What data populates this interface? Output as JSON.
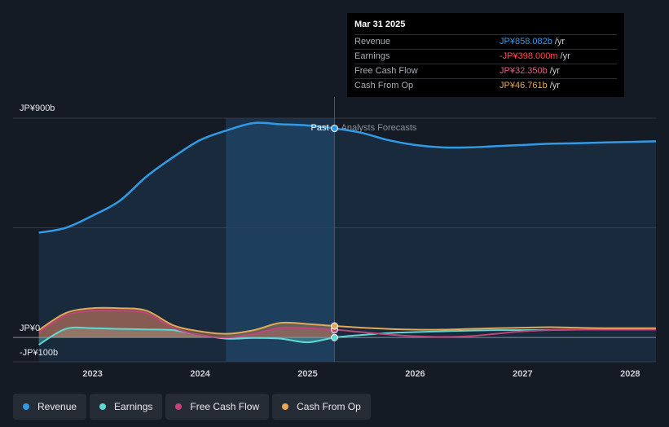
{
  "colors": {
    "revenue": "#2f9be8",
    "earnings": "#5fd9d3",
    "free_cash_flow": "#c2447a",
    "cash_from_op": "#e4a857",
    "background": "#151b24"
  },
  "tooltip": {
    "date": "Mar 31 2025",
    "rows": [
      {
        "label": "Revenue",
        "value": "JP¥858.082b",
        "unit": "/yr",
        "color": "#2f9be8"
      },
      {
        "label": "Earnings",
        "value": "-JP¥398.000m",
        "unit": "/yr",
        "color": "#ff4b4b"
      },
      {
        "label": "Free Cash Flow",
        "value": "JP¥32.350b",
        "unit": "/yr",
        "color": "#e05b8c"
      },
      {
        "label": "Cash From Op",
        "value": "JP¥46.761b",
        "unit": "/yr",
        "color": "#e4a857"
      }
    ]
  },
  "legend": [
    {
      "label": "Revenue",
      "color": "#2f9be8"
    },
    {
      "label": "Earnings",
      "color": "#5fd9d3"
    },
    {
      "label": "Free Cash Flow",
      "color": "#c2447a"
    },
    {
      "label": "Cash From Op",
      "color": "#e4a857"
    }
  ],
  "chart_data": {
    "type": "line",
    "y_labels": [
      "JP¥900b",
      "JP¥0",
      "-JP¥100b"
    ],
    "x_ticks": [
      "2023",
      "2024",
      "2025",
      "2026",
      "2027",
      "2028"
    ],
    "ylim": [
      -100,
      900
    ],
    "xlim": [
      2022.26,
      2028.24
    ],
    "divider_labels": {
      "past": "Past",
      "forecast": "Analysts Forecasts"
    },
    "past_end": 2025.25,
    "highlight_start": 2024.24,
    "grid": true,
    "series": [
      {
        "name": "Revenue",
        "color": "#2f9be8",
        "points": [
          [
            2022.5,
            430
          ],
          [
            2022.75,
            450
          ],
          [
            2023.0,
            500
          ],
          [
            2023.25,
            560
          ],
          [
            2023.5,
            660
          ],
          [
            2023.75,
            740
          ],
          [
            2024.0,
            810
          ],
          [
            2024.25,
            850
          ],
          [
            2024.5,
            880
          ],
          [
            2024.75,
            875
          ],
          [
            2025.0,
            870
          ],
          [
            2025.25,
            858
          ],
          [
            2025.5,
            840
          ],
          [
            2025.75,
            810
          ],
          [
            2026.0,
            790
          ],
          [
            2026.25,
            780
          ],
          [
            2026.5,
            780
          ],
          [
            2026.75,
            785
          ],
          [
            2027.0,
            790
          ],
          [
            2027.25,
            795
          ],
          [
            2027.5,
            797
          ],
          [
            2027.75,
            800
          ],
          [
            2028.24,
            805
          ]
        ]
      },
      {
        "name": "Earnings",
        "color": "#5fd9d3",
        "points": [
          [
            2022.5,
            -30
          ],
          [
            2022.75,
            35
          ],
          [
            2023.0,
            38
          ],
          [
            2023.25,
            35
          ],
          [
            2023.5,
            33
          ],
          [
            2023.75,
            30
          ],
          [
            2024.0,
            10
          ],
          [
            2024.25,
            -5
          ],
          [
            2024.5,
            -2
          ],
          [
            2024.75,
            -5
          ],
          [
            2025.0,
            -20
          ],
          [
            2025.25,
            -0.4
          ],
          [
            2025.5,
            10
          ],
          [
            2025.75,
            18
          ],
          [
            2026.0,
            22
          ],
          [
            2026.25,
            25
          ],
          [
            2026.5,
            28
          ],
          [
            2026.75,
            30
          ],
          [
            2027.0,
            30
          ],
          [
            2027.25,
            31
          ],
          [
            2027.5,
            32
          ],
          [
            2027.75,
            32
          ],
          [
            2028.24,
            33
          ]
        ]
      },
      {
        "name": "Free Cash Flow",
        "color": "#c2447a",
        "points": [
          [
            2022.5,
            20
          ],
          [
            2022.75,
            90
          ],
          [
            2023.0,
            110
          ],
          [
            2023.25,
            110
          ],
          [
            2023.5,
            100
          ],
          [
            2023.75,
            40
          ],
          [
            2024.0,
            10
          ],
          [
            2024.25,
            0
          ],
          [
            2024.5,
            15
          ],
          [
            2024.75,
            40
          ],
          [
            2025.0,
            38
          ],
          [
            2025.25,
            32
          ],
          [
            2025.5,
            22
          ],
          [
            2025.75,
            12
          ],
          [
            2026.0,
            5
          ],
          [
            2026.25,
            2
          ],
          [
            2026.5,
            5
          ],
          [
            2026.75,
            15
          ],
          [
            2027.0,
            25
          ],
          [
            2027.25,
            30
          ],
          [
            2027.5,
            32
          ],
          [
            2027.75,
            32
          ],
          [
            2028.24,
            33
          ]
        ]
      },
      {
        "name": "Cash From Op",
        "color": "#e4a857",
        "points": [
          [
            2022.5,
            30
          ],
          [
            2022.75,
            100
          ],
          [
            2023.0,
            120
          ],
          [
            2023.25,
            120
          ],
          [
            2023.5,
            110
          ],
          [
            2023.75,
            50
          ],
          [
            2024.0,
            25
          ],
          [
            2024.25,
            15
          ],
          [
            2024.5,
            30
          ],
          [
            2024.75,
            60
          ],
          [
            2025.0,
            55
          ],
          [
            2025.25,
            47
          ],
          [
            2025.5,
            40
          ],
          [
            2025.75,
            35
          ],
          [
            2026.0,
            32
          ],
          [
            2026.25,
            32
          ],
          [
            2026.5,
            35
          ],
          [
            2026.75,
            38
          ],
          [
            2027.0,
            40
          ],
          [
            2027.25,
            42
          ],
          [
            2027.5,
            40
          ],
          [
            2027.75,
            38
          ],
          [
            2028.24,
            38
          ]
        ]
      }
    ]
  }
}
